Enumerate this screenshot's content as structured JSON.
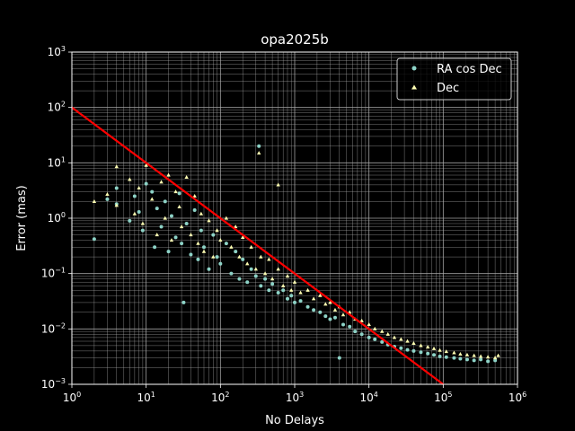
{
  "chart_data": {
    "type": "scatter",
    "title": "opa2025b",
    "xlabel": "No Delays",
    "ylabel": "Error (mas)",
    "xscale": "log",
    "yscale": "log",
    "xlim": [
      1,
      1000000
    ],
    "ylim": [
      0.001,
      1000
    ],
    "grid": true,
    "grid_minor": true,
    "legend_position": "upper right",
    "x_ticks": [
      1,
      10,
      100,
      1000,
      10000,
      100000,
      1000000
    ],
    "x_tick_labels": [
      {
        "base": "10",
        "exp": "0"
      },
      {
        "base": "10",
        "exp": "1"
      },
      {
        "base": "10",
        "exp": "2"
      },
      {
        "base": "10",
        "exp": "3"
      },
      {
        "base": "10",
        "exp": "4"
      },
      {
        "base": "10",
        "exp": "5"
      },
      {
        "base": "10",
        "exp": "6"
      }
    ],
    "y_ticks": [
      0.001,
      0.01,
      0.1,
      1,
      10,
      100,
      1000
    ],
    "y_tick_labels": [
      {
        "base": "10",
        "exp": "−3"
      },
      {
        "base": "10",
        "exp": "−2"
      },
      {
        "base": "10",
        "exp": "−1"
      },
      {
        "base": "10",
        "exp": "0"
      },
      {
        "base": "10",
        "exp": "1"
      },
      {
        "base": "10",
        "exp": "2"
      },
      {
        "base": "10",
        "exp": "3"
      }
    ],
    "series": [
      {
        "name": "RA cos Dec",
        "marker": "circle",
        "color": "#8dd3c7",
        "points": [
          [
            2,
            0.42
          ],
          [
            3,
            2.2
          ],
          [
            4,
            3.5
          ],
          [
            4,
            1.8
          ],
          [
            6,
            0.9
          ],
          [
            7,
            2.5
          ],
          [
            8,
            1.3
          ],
          [
            9,
            0.6
          ],
          [
            10,
            4.2
          ],
          [
            12,
            3.0
          ],
          [
            13,
            0.3
          ],
          [
            14,
            1.5
          ],
          [
            16,
            0.7
          ],
          [
            18,
            2.0
          ],
          [
            20,
            0.25
          ],
          [
            22,
            1.1
          ],
          [
            25,
            0.45
          ],
          [
            28,
            2.8
          ],
          [
            30,
            0.35
          ],
          [
            32,
            0.03
          ],
          [
            35,
            0.8
          ],
          [
            40,
            0.22
          ],
          [
            45,
            1.4
          ],
          [
            50,
            0.18
          ],
          [
            55,
            0.6
          ],
          [
            60,
            0.3
          ],
          [
            70,
            0.12
          ],
          [
            80,
            0.5
          ],
          [
            90,
            0.2
          ],
          [
            100,
            0.15
          ],
          [
            120,
            0.35
          ],
          [
            140,
            0.1
          ],
          [
            160,
            0.25
          ],
          [
            180,
            0.08
          ],
          [
            200,
            0.18
          ],
          [
            230,
            0.07
          ],
          [
            260,
            0.12
          ],
          [
            300,
            0.09
          ],
          [
            330,
            20
          ],
          [
            350,
            0.06
          ],
          [
            400,
            0.08
          ],
          [
            450,
            0.05
          ],
          [
            500,
            0.065
          ],
          [
            600,
            0.045
          ],
          [
            700,
            0.05
          ],
          [
            800,
            0.035
          ],
          [
            900,
            0.04
          ],
          [
            1000,
            0.03
          ],
          [
            1200,
            0.032
          ],
          [
            1500,
            0.025
          ],
          [
            1800,
            0.022
          ],
          [
            2200,
            0.02
          ],
          [
            2600,
            0.017
          ],
          [
            3000,
            0.015
          ],
          [
            3500,
            0.016
          ],
          [
            4000,
            0.003
          ],
          [
            4500,
            0.012
          ],
          [
            5500,
            0.011
          ],
          [
            6500,
            0.009
          ],
          [
            8000,
            0.008
          ],
          [
            10000,
            0.007
          ],
          [
            12000,
            0.0065
          ],
          [
            15000,
            0.0058
          ],
          [
            18000,
            0.0052
          ],
          [
            22000,
            0.0048
          ],
          [
            27000,
            0.0045
          ],
          [
            33000,
            0.0042
          ],
          [
            40000,
            0.004
          ],
          [
            50000,
            0.0038
          ],
          [
            62000,
            0.0036
          ],
          [
            75000,
            0.0034
          ],
          [
            90000,
            0.0032
          ],
          [
            110000,
            0.0031
          ],
          [
            140000,
            0.003
          ],
          [
            170000,
            0.0029
          ],
          [
            210000,
            0.0028
          ],
          [
            260000,
            0.0027
          ],
          [
            320000,
            0.0028
          ],
          [
            400000,
            0.0026
          ],
          [
            500000,
            0.0027
          ]
        ]
      },
      {
        "name": "Dec",
        "marker": "triangle",
        "color": "#ffffb3",
        "points": [
          [
            2,
            2.0
          ],
          [
            3,
            2.7
          ],
          [
            4,
            8.5
          ],
          [
            4,
            1.7
          ],
          [
            6,
            5.0
          ],
          [
            7,
            1.2
          ],
          [
            8,
            3.5
          ],
          [
            9,
            0.8
          ],
          [
            10,
            9.0
          ],
          [
            12,
            2.2
          ],
          [
            14,
            0.5
          ],
          [
            16,
            4.5
          ],
          [
            18,
            1.0
          ],
          [
            20,
            6.0
          ],
          [
            22,
            0.4
          ],
          [
            25,
            3.0
          ],
          [
            28,
            1.6
          ],
          [
            30,
            0.7
          ],
          [
            35,
            5.5
          ],
          [
            40,
            0.5
          ],
          [
            45,
            2.5
          ],
          [
            50,
            0.35
          ],
          [
            55,
            1.2
          ],
          [
            60,
            0.25
          ],
          [
            70,
            0.9
          ],
          [
            80,
            0.2
          ],
          [
            90,
            0.6
          ],
          [
            100,
            0.4
          ],
          [
            120,
            1.0
          ],
          [
            140,
            0.3
          ],
          [
            160,
            0.7
          ],
          [
            180,
            0.2
          ],
          [
            200,
            0.45
          ],
          [
            230,
            0.15
          ],
          [
            260,
            0.3
          ],
          [
            300,
            0.12
          ],
          [
            330,
            15
          ],
          [
            350,
            0.2
          ],
          [
            400,
            0.1
          ],
          [
            450,
            0.18
          ],
          [
            500,
            0.08
          ],
          [
            600,
            0.12
          ],
          [
            700,
            0.06
          ],
          [
            800,
            0.09
          ],
          [
            900,
            0.05
          ],
          [
            1000,
            0.07
          ],
          [
            1200,
            0.045
          ],
          [
            1500,
            0.05
          ],
          [
            1800,
            0.035
          ],
          [
            2200,
            0.04
          ],
          [
            2600,
            0.028
          ],
          [
            3000,
            0.03
          ],
          [
            3500,
            0.022
          ],
          [
            4000,
            0.025
          ],
          [
            4500,
            0.018
          ],
          [
            5500,
            0.02
          ],
          [
            6500,
            0.015
          ],
          [
            8000,
            0.014
          ],
          [
            10000,
            0.012
          ],
          [
            12000,
            0.01
          ],
          [
            15000,
            0.009
          ],
          [
            18000,
            0.008
          ],
          [
            22000,
            0.007
          ],
          [
            27000,
            0.0065
          ],
          [
            33000,
            0.006
          ],
          [
            40000,
            0.0055
          ],
          [
            50000,
            0.005
          ],
          [
            62000,
            0.0047
          ],
          [
            75000,
            0.0044
          ],
          [
            90000,
            0.0041
          ],
          [
            110000,
            0.0039
          ],
          [
            140000,
            0.0037
          ],
          [
            170000,
            0.0035
          ],
          [
            210000,
            0.0034
          ],
          [
            260000,
            0.0033
          ],
          [
            320000,
            0.0032
          ],
          [
            400000,
            0.0031
          ],
          [
            500000,
            0.003
          ],
          [
            550000,
            0.0033
          ],
          [
            600,
            4.0
          ]
        ]
      }
    ],
    "reference_line": {
      "color": "#ff0000",
      "points": [
        [
          1,
          100
        ],
        [
          100000,
          0.001
        ]
      ]
    }
  }
}
